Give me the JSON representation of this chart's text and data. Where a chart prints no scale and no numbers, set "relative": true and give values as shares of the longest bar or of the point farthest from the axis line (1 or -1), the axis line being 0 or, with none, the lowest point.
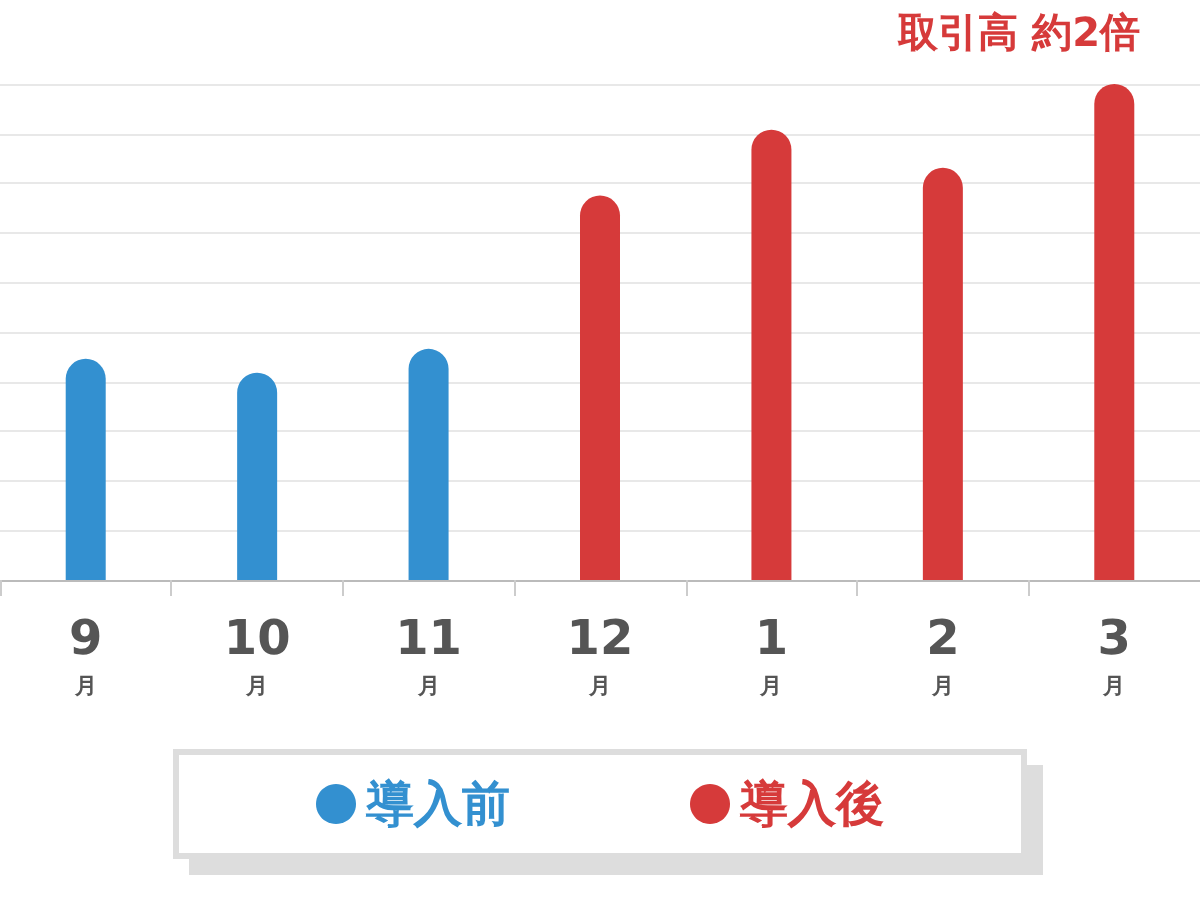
{
  "chart_data": {
    "type": "bar",
    "relative": true,
    "categories": [
      "9\n月",
      "10\n月",
      "11\n月",
      "12\n月",
      "1\n月",
      "2\n月",
      "3\n月"
    ],
    "series": [
      {
        "name": "導入前",
        "color": "#3390d0",
        "values": [
          0.446,
          0.418,
          0.466,
          null,
          null,
          null,
          null
        ]
      },
      {
        "name": "導入後",
        "color": "#d63a3a",
        "values": [
          null,
          null,
          null,
          0.775,
          0.908,
          0.831,
          1
        ]
      }
    ],
    "annotations": [
      "取引高 約2倍"
    ],
    "grid": "y",
    "legend": "bottom"
  }
}
